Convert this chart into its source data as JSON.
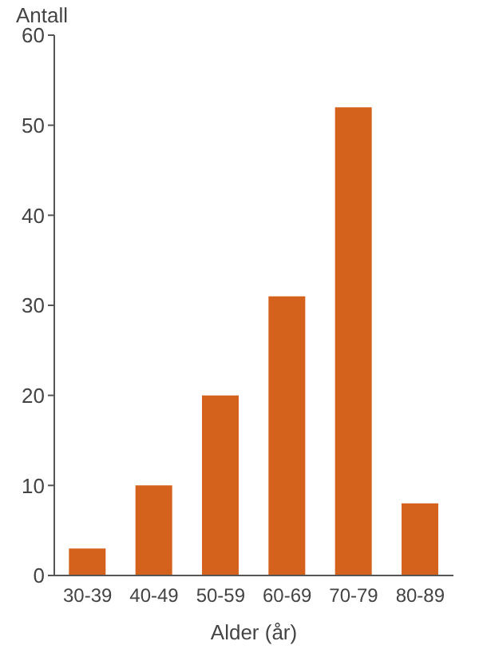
{
  "chart_data": {
    "type": "bar",
    "ylabel": "Antall",
    "xlabel": "Alder (år)",
    "categories": [
      "30-39",
      "40-49",
      "50-59",
      "60-69",
      "70-79",
      "80-89"
    ],
    "values": [
      3,
      10,
      20,
      31,
      52,
      8
    ],
    "color": "#d4621c",
    "ylim": [
      0,
      60
    ],
    "yticks": [
      0,
      10,
      20,
      30,
      40,
      50,
      60
    ],
    "grid": false
  }
}
